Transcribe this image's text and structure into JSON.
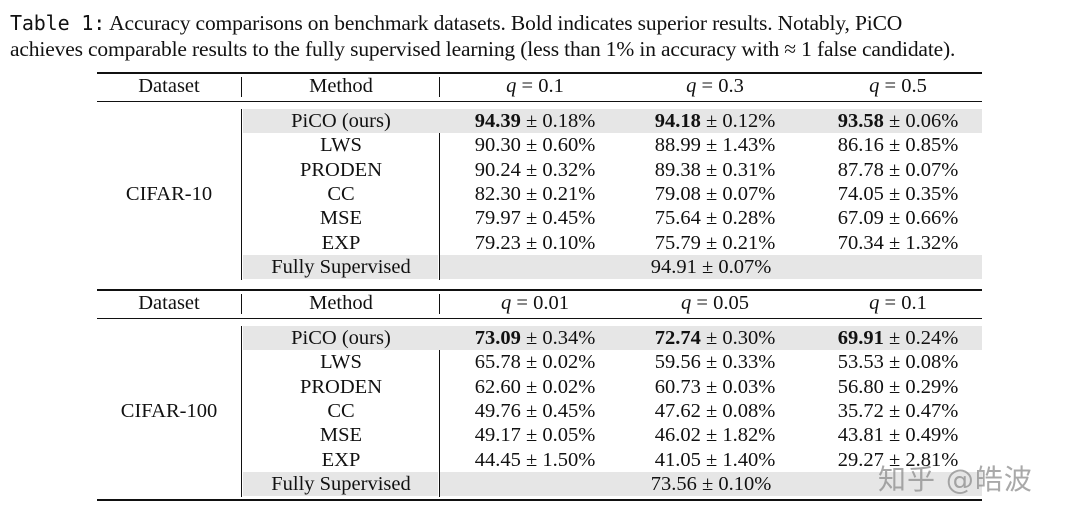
{
  "caption": {
    "label": "Table 1:",
    "line1_rest": " Accuracy comparisons on benchmark datasets. Bold indicates superior results. Notably, PiCO",
    "line2": "achieves comparable results to the fully supervised learning (less than 1% in accuracy with ≈ 1 false candidate)."
  },
  "tables": [
    {
      "header": {
        "dataset": "Dataset",
        "method": "Method",
        "q": [
          "q = 0.1",
          "q = 0.3",
          "q = 0.5"
        ]
      },
      "dataset_name": "CIFAR-10",
      "rows": [
        {
          "method": "PiCO (ours)",
          "shade": true,
          "bold": true,
          "v": [
            {
              "m": "94.39",
              "s": "± 0.18%"
            },
            {
              "m": "94.18",
              "s": "± 0.12%"
            },
            {
              "m": "93.58",
              "s": "± 0.06%"
            }
          ]
        },
        {
          "method": "LWS",
          "v": [
            {
              "m": "90.30",
              "s": "± 0.60%"
            },
            {
              "m": "88.99",
              "s": "± 1.43%"
            },
            {
              "m": "86.16",
              "s": "± 0.85%"
            }
          ]
        },
        {
          "method": "PRODEN",
          "v": [
            {
              "m": "90.24",
              "s": "± 0.32%"
            },
            {
              "m": "89.38",
              "s": "± 0.31%"
            },
            {
              "m": "87.78",
              "s": "± 0.07%"
            }
          ]
        },
        {
          "method": "CC",
          "v": [
            {
              "m": "82.30",
              "s": "± 0.21%"
            },
            {
              "m": "79.08",
              "s": "± 0.07%"
            },
            {
              "m": "74.05",
              "s": "± 0.35%"
            }
          ]
        },
        {
          "method": "MSE",
          "v": [
            {
              "m": "79.97",
              "s": "± 0.45%"
            },
            {
              "m": "75.64",
              "s": "± 0.28%"
            },
            {
              "m": "67.09",
              "s": "± 0.66%"
            }
          ]
        },
        {
          "method": "EXP",
          "v": [
            {
              "m": "79.23",
              "s": "± 0.10%"
            },
            {
              "m": "75.79",
              "s": "± 0.21%"
            },
            {
              "m": "70.34",
              "s": "± 1.32%"
            }
          ]
        }
      ],
      "fully_supervised": {
        "method": "Fully Supervised",
        "value": "94.91 ± 0.07%"
      }
    },
    {
      "header": {
        "dataset": "Dataset",
        "method": "Method",
        "q": [
          "q = 0.01",
          "q = 0.05",
          "q = 0.1"
        ]
      },
      "dataset_name": "CIFAR-100",
      "rows": [
        {
          "method": "PiCO (ours)",
          "shade": true,
          "bold": true,
          "v": [
            {
              "m": "73.09",
              "s": "± 0.34%"
            },
            {
              "m": "72.74",
              "s": "± 0.30%"
            },
            {
              "m": "69.91",
              "s": "± 0.24%"
            }
          ]
        },
        {
          "method": "LWS",
          "v": [
            {
              "m": "65.78",
              "s": "± 0.02%"
            },
            {
              "m": "59.56",
              "s": "± 0.33%"
            },
            {
              "m": "53.53",
              "s": "± 0.08%"
            }
          ]
        },
        {
          "method": "PRODEN",
          "v": [
            {
              "m": "62.60",
              "s": "± 0.02%"
            },
            {
              "m": "60.73",
              "s": "± 0.03%"
            },
            {
              "m": "56.80",
              "s": "± 0.29%"
            }
          ]
        },
        {
          "method": "CC",
          "v": [
            {
              "m": "49.76",
              "s": "± 0.45%"
            },
            {
              "m": "47.62",
              "s": "± 0.08%"
            },
            {
              "m": "35.72",
              "s": "± 0.47%"
            }
          ]
        },
        {
          "method": "MSE",
          "v": [
            {
              "m": "49.17",
              "s": "± 0.05%"
            },
            {
              "m": "46.02",
              "s": "± 1.82%"
            },
            {
              "m": "43.81",
              "s": "± 0.49%"
            }
          ]
        },
        {
          "method": "EXP",
          "v": [
            {
              "m": "44.45",
              "s": "± 1.50%"
            },
            {
              "m": "41.05",
              "s": "± 1.40%"
            },
            {
              "m": "29.27",
              "s": "± 2.81%"
            }
          ]
        }
      ],
      "fully_supervised": {
        "method": "Fully Supervised",
        "value": "73.56 ± 0.10%"
      }
    }
  ],
  "watermark": "知乎 @皓波"
}
